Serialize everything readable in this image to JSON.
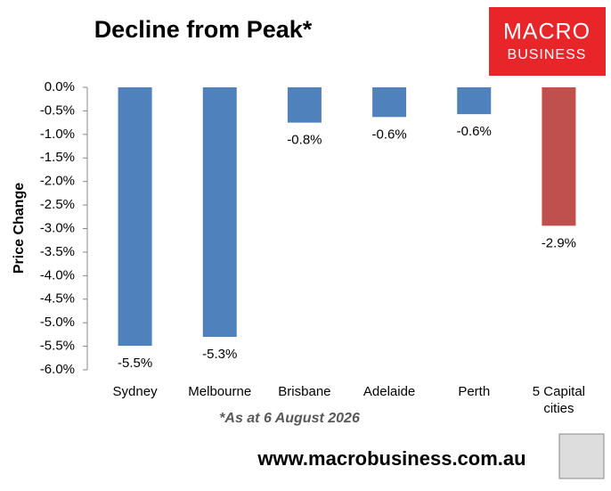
{
  "chart_data": {
    "type": "bar",
    "title": "Decline from Peak*",
    "ylabel": "Price Change",
    "categories": [
      "Sydney",
      "Melbourne",
      "Brisbane",
      "Adelaide",
      "Perth",
      "5 Capital cities"
    ],
    "values": [
      -5.49,
      -5.3,
      -0.75,
      -0.63,
      -0.57,
      -2.94
    ],
    "value_labels": [
      "-5.5%",
      "-5.3%",
      "-0.8%",
      "-0.6%",
      "-0.6%",
      "-2.9%"
    ],
    "colors": [
      "#4f81bd",
      "#4f81bd",
      "#4f81bd",
      "#4f81bd",
      "#4f81bd",
      "#c0504d"
    ],
    "ylim": [
      -6,
      0
    ],
    "yticks": [
      {
        "value": 0,
        "label": "0.0%"
      },
      {
        "value": -0.5,
        "label": "-0.5%"
      },
      {
        "value": -1,
        "label": "-1.0%"
      },
      {
        "value": -1.5,
        "label": "-1.5%"
      },
      {
        "value": -2,
        "label": "-2.0%"
      },
      {
        "value": -2.5,
        "label": "-2.5%"
      },
      {
        "value": -3,
        "label": "-3.0%"
      },
      {
        "value": -3.5,
        "label": "-3.5%"
      },
      {
        "value": -4,
        "label": "-4.0%"
      },
      {
        "value": -4.5,
        "label": "-4.5%"
      },
      {
        "value": -5,
        "label": "-5.0%"
      },
      {
        "value": -5.5,
        "label": "-5.5%"
      },
      {
        "value": -6,
        "label": "-6.0%"
      }
    ],
    "footnote": "*As at 6 August 2026",
    "source": "www.macrobusiness.com.au",
    "logo": {
      "line1": "MACRO",
      "line2": "BUSINESS"
    }
  }
}
